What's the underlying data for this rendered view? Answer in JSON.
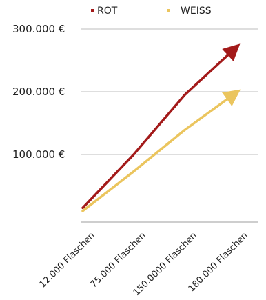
{
  "chart_data": {
    "type": "line",
    "categories": [
      "12.000 Flaschen",
      "75.000 Flaschen",
      "150.0000 Flaschen",
      "180.000 Flaschen"
    ],
    "series": [
      {
        "name": "ROT",
        "color": "#A31A1A",
        "values": [
          15000,
          100000,
          195000,
          270000
        ]
      },
      {
        "name": "WEISS",
        "color": "#EBC55E",
        "values": [
          10000,
          73000,
          139000,
          198000
        ]
      }
    ],
    "yticks": [
      {
        "value": 100000,
        "label": "100.000 €"
      },
      {
        "value": 200000,
        "label": "200.000 €"
      },
      {
        "value": 300000,
        "label": "300.000 €"
      }
    ],
    "ylim": [
      0,
      300000
    ],
    "grid": true,
    "legend_position": "top",
    "title": "",
    "xlabel": "",
    "ylabel": ""
  }
}
